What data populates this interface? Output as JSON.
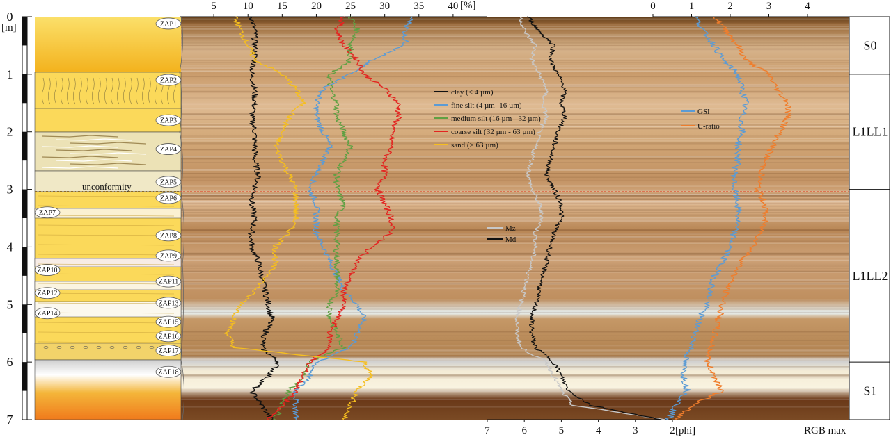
{
  "chart_data": {
    "type": "line",
    "depth_axis": {
      "unit": "[m]",
      "ticks": [
        "0",
        "1",
        "2",
        "3",
        "4",
        "5",
        "6",
        "7"
      ],
      "range": [
        0,
        7
      ]
    },
    "percent_axis": {
      "ticks": [
        "5",
        "10",
        "15",
        "20",
        "25",
        "30",
        "35",
        "40"
      ],
      "unit": "[%]",
      "range": [
        0,
        45
      ]
    },
    "phi_axis": {
      "ticks": [
        "7",
        "6",
        "5",
        "4",
        "3",
        "2"
      ],
      "unit": "[phi]",
      "range": [
        2,
        7
      ],
      "reversed": true
    },
    "ratio_axis": {
      "ticks": [
        "0",
        "1",
        "2",
        "3",
        "4"
      ],
      "range": [
        0,
        4
      ]
    },
    "rgb_label": "RGB max",
    "depths": [
      0,
      0.25,
      0.5,
      0.75,
      1,
      1.25,
      1.5,
      1.75,
      2,
      2.25,
      2.5,
      2.75,
      3,
      3.25,
      3.5,
      3.75,
      4,
      4.25,
      4.5,
      4.75,
      5,
      5.25,
      5.5,
      5.75,
      6,
      6.25,
      6.5,
      6.75,
      7
    ],
    "grain_legend": [
      {
        "name": "clay (< 4 µm)",
        "color": "#111111"
      },
      {
        "name": "fine silt (4 µm- 16 µm)",
        "color": "#5b9bd5"
      },
      {
        "name": "medium silt (16 µm - 32 µm)",
        "color": "#5fa043"
      },
      {
        "name": "coarse silt (32 µm - 63 µm)",
        "color": "#e32420"
      },
      {
        "name": "sand (> 63 µm)",
        "color": "#f5be1f"
      }
    ],
    "grain_series": [
      {
        "name": "clay (< 4 µm)",
        "color": "#111111",
        "values": [
          10.5,
          11,
          11,
          11,
          10.5,
          11,
          11,
          10.5,
          11,
          11,
          11,
          11.5,
          11,
          10.5,
          11,
          10.5,
          10.5,
          11.5,
          12,
          12.5,
          13,
          13.5,
          12.5,
          12,
          14.5,
          13,
          10.5,
          12,
          13.5
        ]
      },
      {
        "name": "fine silt (4 µm- 16 µm)",
        "color": "#5b9bd5",
        "values": [
          34,
          33,
          33,
          28,
          25,
          21,
          20,
          20,
          21,
          22,
          21,
          20,
          19,
          20,
          20,
          20,
          21,
          22,
          23,
          24,
          26,
          27,
          26,
          25,
          20,
          19,
          17,
          17,
          17
        ]
      },
      {
        "name": "medium silt (16 µm - 32 µm)",
        "color": "#5fa043",
        "values": [
          25,
          26,
          25,
          25,
          22,
          22,
          23,
          23,
          24,
          25,
          24,
          23,
          23,
          24,
          23,
          23,
          23,
          23,
          23,
          23,
          22,
          22,
          23,
          24,
          19,
          18,
          16,
          15,
          14
        ]
      },
      {
        "name": "coarse silt (32 µm - 63 µm)",
        "color": "#e32420",
        "values": [
          24,
          23,
          24,
          26,
          27,
          30,
          32,
          32,
          31,
          31,
          30,
          30,
          29,
          30,
          31,
          31,
          28,
          26,
          25,
          24,
          24,
          23,
          22,
          22,
          19,
          18,
          17,
          15,
          13
        ]
      },
      {
        "name": "sand (> 63 µm)",
        "color": "#f5be1f",
        "values": [
          8,
          9,
          10,
          11,
          15,
          17,
          18,
          16,
          15,
          14,
          15,
          16,
          17,
          17,
          17,
          16,
          14,
          14,
          13,
          11,
          9,
          8,
          7,
          8,
          27,
          28,
          26,
          25,
          24
        ]
      }
    ],
    "phi_legend": [
      {
        "name": "Mz",
        "color": "#c8c8c8"
      },
      {
        "name": "Md",
        "color": "#111111"
      }
    ],
    "phi_series": [
      {
        "name": "Mz",
        "color": "#c8c8c8",
        "values": [
          6.1,
          6,
          5.7,
          5.8,
          5.6,
          5.4,
          5.5,
          5.4,
          5.6,
          5.7,
          5.8,
          5.9,
          5.8,
          5.6,
          5.5,
          5.7,
          5.7,
          5.8,
          5.9,
          6,
          6.1,
          6.2,
          6.2,
          6.1,
          5.4,
          5.2,
          5,
          4.7,
          2.2
        ]
      },
      {
        "name": "Md",
        "color": "#111111",
        "values": [
          5.9,
          5.6,
          5.2,
          5.3,
          5.1,
          4.9,
          5.0,
          4.9,
          5.1,
          5.2,
          5.3,
          5.4,
          5.2,
          5.0,
          5.0,
          5.2,
          5.3,
          5.4,
          5.5,
          5.6,
          5.7,
          5.8,
          5.8,
          5.7,
          5.2,
          5.0,
          4.8,
          4.2,
          2.3
        ]
      }
    ],
    "ratio_legend": [
      {
        "name": "GSI",
        "color": "#5b9bd5"
      },
      {
        "name": "U-ratio",
        "color": "#ef7d2c"
      }
    ],
    "ratio_series": [
      {
        "name": "GSI",
        "color": "#5b9bd5",
        "values": [
          1.1,
          1.3,
          1.6,
          1.8,
          2.2,
          2.3,
          2.4,
          2.3,
          2.3,
          2.2,
          2.2,
          2.1,
          2.1,
          2.2,
          2.2,
          2.1,
          2.0,
          1.8,
          1.6,
          1.5,
          1.4,
          1.2,
          1.1,
          1.0,
          0.8,
          0.8,
          0.9,
          0.6,
          0.4
        ]
      },
      {
        "name": "U-ratio",
        "color": "#ef7d2c",
        "values": [
          1.6,
          1.9,
          2.2,
          2.4,
          3.0,
          3.2,
          3.5,
          3.5,
          3.3,
          3.1,
          2.9,
          2.8,
          2.7,
          2.9,
          2.9,
          2.8,
          2.6,
          2.3,
          2.1,
          1.9,
          1.8,
          1.7,
          1.6,
          1.5,
          1.4,
          1.6,
          1.8,
          1.0,
          0.6
        ]
      }
    ],
    "units": [
      {
        "name": "S0",
        "from": 0,
        "to": 1
      },
      {
        "name": "L1LL1",
        "from": 1,
        "to": 3
      },
      {
        "name": "L1LL2",
        "from": 3,
        "to": 6
      },
      {
        "name": "S1",
        "from": 6,
        "to": 7
      }
    ],
    "samples": [
      {
        "label": "ZAP1",
        "depth": 0.12
      },
      {
        "label": "ZAP2",
        "depth": 1.1
      },
      {
        "label": "ZAP3",
        "depth": 1.8
      },
      {
        "label": "ZAP4",
        "depth": 2.3
      },
      {
        "label": "ZAP5",
        "depth": 2.87
      },
      {
        "label": "ZAP6",
        "depth": 3.15
      },
      {
        "label": "ZAP7",
        "depth": 3.4
      },
      {
        "label": "ZAP8",
        "depth": 3.8
      },
      {
        "label": "ZAP9",
        "depth": 4.15
      },
      {
        "label": "ZAP10",
        "depth": 4.4
      },
      {
        "label": "ZAP11",
        "depth": 4.6
      },
      {
        "label": "ZAP12",
        "depth": 4.8
      },
      {
        "label": "ZAP13",
        "depth": 4.97
      },
      {
        "label": "ZAP14",
        "depth": 5.15
      },
      {
        "label": "ZAP15",
        "depth": 5.3
      },
      {
        "label": "ZAP16",
        "depth": 5.55
      },
      {
        "label": "ZAP17",
        "depth": 5.8
      },
      {
        "label": "ZAP18",
        "depth": 6.17
      }
    ],
    "unconformity_label": "unconformity",
    "unconformity_depth": 3.03
  }
}
